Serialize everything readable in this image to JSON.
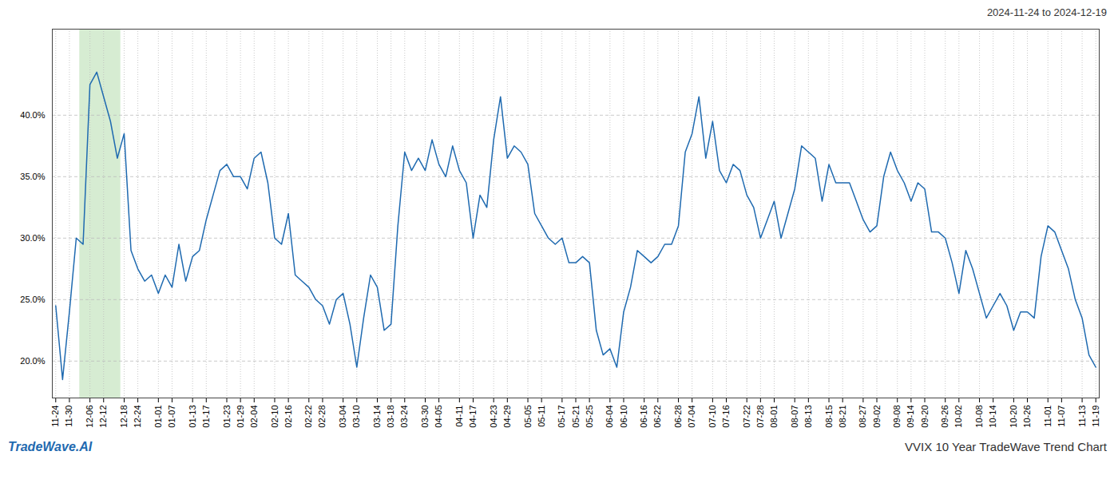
{
  "chart_data": {
    "type": "line",
    "title": "VVIX 10 Year TradeWave Trend Chart",
    "subtitle": "2024-11-24 to 2024-12-19",
    "annotations": [
      "TradeWave.AI"
    ],
    "color": "#1f6ab0",
    "highlight": {
      "start": 4,
      "end": 9,
      "color": "#d6ecd2"
    },
    "ylim": [
      17,
      47
    ],
    "yticks": [
      {
        "value": 20.0,
        "label": "20.0%"
      },
      {
        "value": 25.0,
        "label": "25.0%"
      },
      {
        "value": 30.0,
        "label": "30.0%"
      },
      {
        "value": 35.0,
        "label": "35.0%"
      },
      {
        "value": 40.0,
        "label": "40.0%"
      }
    ],
    "grid": true,
    "categories": [
      "11-24",
      null,
      "11-30",
      null,
      null,
      "12-06",
      null,
      "12-12",
      null,
      null,
      "12-18",
      null,
      "12-24",
      null,
      null,
      "01-01",
      null,
      "01-07",
      null,
      null,
      "01-13",
      null,
      "01-17",
      null,
      null,
      "01-23",
      null,
      "01-29",
      null,
      "02-04",
      null,
      null,
      "02-10",
      null,
      "02-16",
      null,
      null,
      "02-22",
      null,
      "02-28",
      null,
      null,
      "03-04",
      null,
      "03-10",
      null,
      null,
      "03-14",
      null,
      "03-18",
      null,
      "03-24",
      null,
      null,
      "03-30",
      null,
      "04-05",
      null,
      null,
      "04-11",
      null,
      "04-17",
      null,
      null,
      "04-23",
      null,
      "04-29",
      null,
      null,
      "05-05",
      null,
      "05-11",
      null,
      null,
      "05-17",
      null,
      "05-21",
      null,
      "05-25",
      null,
      null,
      "06-04",
      null,
      "06-10",
      null,
      null,
      "06-16",
      null,
      "06-22",
      null,
      null,
      "06-28",
      null,
      "07-04",
      null,
      null,
      "07-10",
      null,
      "07-16",
      null,
      null,
      "07-22",
      null,
      "07-28",
      null,
      "08-01",
      null,
      null,
      "08-07",
      null,
      "08-13",
      null,
      null,
      "08-15",
      null,
      "08-21",
      null,
      null,
      "08-27",
      null,
      "09-02",
      null,
      null,
      "09-08",
      null,
      "09-14",
      null,
      "09-20",
      null,
      null,
      "09-26",
      null,
      "10-02",
      null,
      null,
      "10-08",
      null,
      "10-14",
      null,
      null,
      "10-20",
      null,
      "10-26",
      null,
      null,
      "11-01",
      null,
      "11-07",
      null,
      null,
      "11-13",
      null,
      "11-19"
    ],
    "values": [
      24.5,
      18.5,
      24.0,
      30.0,
      29.5,
      42.5,
      43.5,
      41.5,
      39.5,
      36.5,
      38.5,
      29.0,
      27.5,
      26.5,
      27.0,
      25.5,
      27.0,
      26.0,
      29.5,
      26.5,
      28.5,
      29.0,
      31.5,
      33.5,
      35.5,
      36.0,
      35.0,
      35.0,
      34.0,
      36.5,
      37.0,
      34.5,
      30.0,
      29.5,
      32.0,
      27.0,
      26.5,
      26.0,
      25.0,
      24.5,
      23.0,
      25.0,
      25.5,
      23.0,
      19.5,
      23.5,
      27.0,
      26.0,
      22.5,
      23.0,
      31.0,
      37.0,
      35.5,
      36.5,
      35.5,
      38.0,
      36.0,
      35.0,
      37.5,
      35.5,
      34.5,
      30.0,
      33.5,
      32.5,
      38.0,
      41.5,
      36.5,
      37.5,
      37.0,
      36.0,
      32.0,
      31.0,
      30.0,
      29.5,
      30.0,
      28.0,
      28.0,
      28.5,
      28.0,
      22.5,
      20.5,
      21.0,
      19.5,
      24.0,
      26.0,
      29.0,
      28.5,
      28.0,
      28.5,
      29.5,
      29.5,
      31.0,
      37.0,
      38.5,
      41.5,
      36.5,
      39.5,
      35.5,
      34.5,
      36.0,
      35.5,
      33.5,
      32.5,
      30.0,
      31.5,
      33.0,
      30.0,
      32.0,
      34.0,
      37.5,
      37.0,
      36.5,
      33.0,
      36.0,
      34.5,
      34.5,
      34.5,
      33.0,
      31.5,
      30.5,
      31.0,
      35.0,
      37.0,
      35.5,
      34.5,
      33.0,
      34.5,
      34.0,
      30.5,
      30.5,
      30.0,
      28.0,
      25.5,
      29.0,
      27.5,
      25.5,
      23.5,
      24.5,
      25.5,
      24.5,
      22.5,
      24.0,
      24.0,
      23.5,
      28.5,
      31.0,
      30.5,
      29.0,
      27.5,
      25.0,
      23.5,
      20.5,
      19.5
    ]
  }
}
